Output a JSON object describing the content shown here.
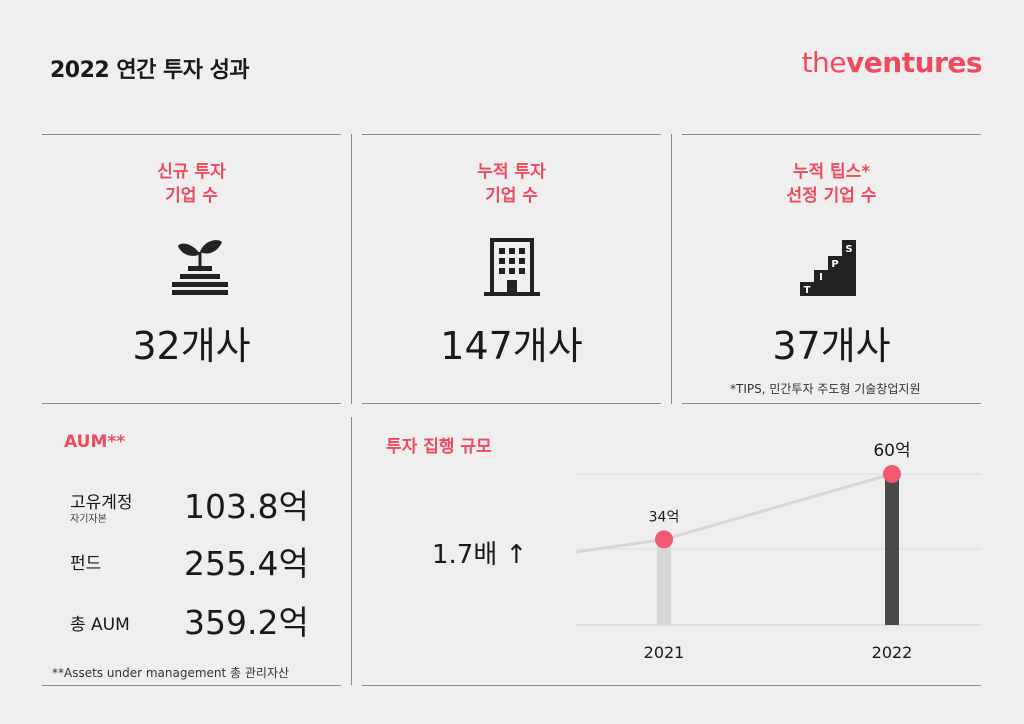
{
  "header": {
    "title": "2022 연간 투자 성과",
    "brand_light": "the",
    "brand_bold": "ventures"
  },
  "cards": [
    {
      "title": "신규 투자\n기업 수",
      "value": "32",
      "unit": "개사",
      "icon": "sprout-coins-icon"
    },
    {
      "title": "누적 투자\n기업 수",
      "value": "147",
      "unit": "개사",
      "icon": "building-icon"
    },
    {
      "title": "누적 팁스*\n선정 기업 수",
      "value": "37",
      "unit": "개사",
      "icon": "tips-stairs-icon",
      "note": "*TIPS, 민간투자 주도형 기술창업지원"
    }
  ],
  "tips_letters": [
    "T",
    "I",
    "P",
    "S"
  ],
  "aum": {
    "title": "AUM**",
    "rows": [
      {
        "label": "고유계정",
        "sub": "자기자본",
        "value": "103.8억"
      },
      {
        "label": "펀드",
        "value": "255.4억"
      },
      {
        "label": "총 AUM",
        "value": "359.2억"
      }
    ],
    "note": "**Assets under management 총 관리자산"
  },
  "growth": {
    "title": "투자 집행 규모",
    "ratio": "1.7배 ↑"
  },
  "chart_data": {
    "type": "bar",
    "categories": [
      "2021",
      "2022"
    ],
    "values": [
      34,
      60
    ],
    "data_labels": [
      "34억",
      "60억"
    ],
    "title": "투자 집행 규모",
    "ylim": [
      0,
      60
    ],
    "grid": true,
    "colors": [
      "#d8d8d8",
      "#4a4a4a"
    ],
    "marker_color": "#ef5a70",
    "trend_color": "#d6d6d6"
  }
}
